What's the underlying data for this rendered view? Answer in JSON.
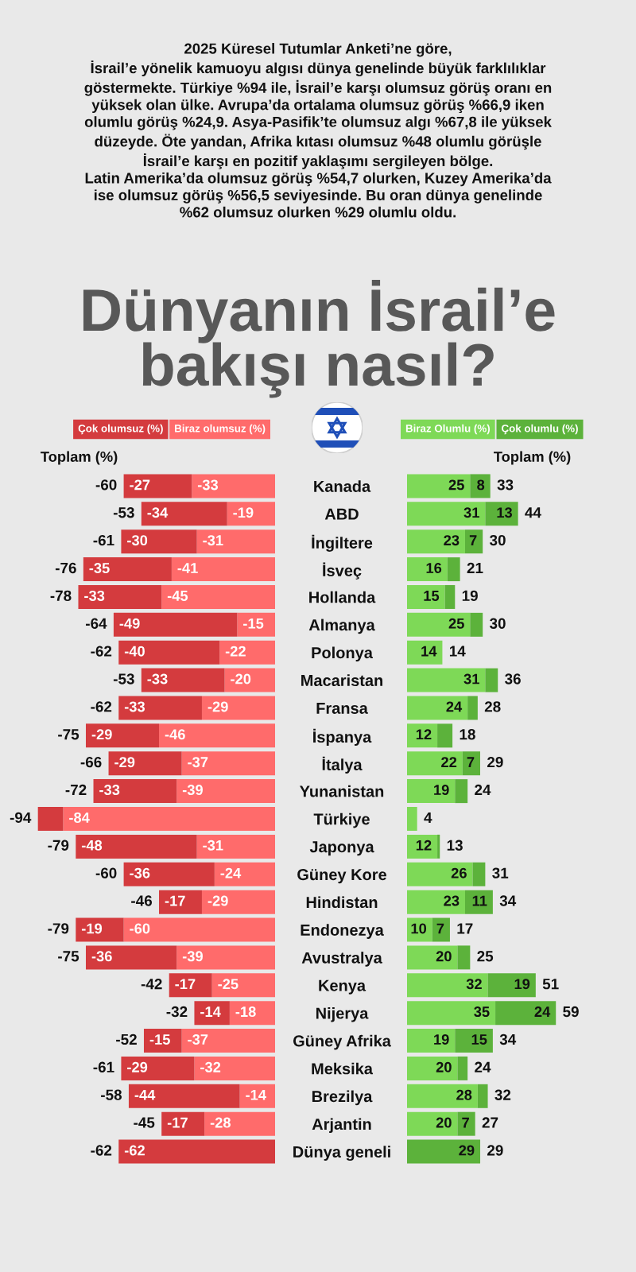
{
  "chart_data": [
    {
      "type": "bar",
      "orientation": "horizontal",
      "stacked": true,
      "title": "Dünyanın İsrail’e\nbakışı nasıl?",
      "subtitle": "2025 Küresel Tutumlar Anketi’ne göre,\nİsrail’e yönelik kamuoyu algısı dünya genelinde büyük farklılıklar\ngöstermekte. Türkiye %94 ile, İsrail’e karşı olumsuz görüş oranı en\nyüksek olan ülke. Avrupa’da ortalama olumsuz görüş %66,9 iken\nolumlu görüş %24,9. Asya-Pasifik’te olumsuz algı %67,8 ile yüksek\ndüzeyde. Öte yandan, Afrika kıtası olumsuz %48 olumlu görüşle\nİsrail’e karşı en pozitif yaklaşımı sergileyen bölge.\nLatin Amerika’da olumsuz görüş %54,7 olurken, Kuzey Amerika’da\nise olumsuz görüş %56,5 seviyesinde. Bu oran dünya genelinde\n%62 olumsuz olurken %29 olumlu oldu.",
      "categories": [
        "Kanada",
        "ABD",
        "İngiltere",
        "İsveç",
        "Hollanda",
        "Almanya",
        "Polonya",
        "Macaristan",
        "Fransa",
        "İspanya",
        "İtalya",
        "Yunanistan",
        "Türkiye",
        "Japonya",
        "Güney Kore",
        "Hindistan",
        "Endonezya",
        "Avustralya",
        "Kenya",
        "Nijerya",
        "Güney Afrika",
        "Meksika",
        "Brezilya",
        "Arjantin",
        "Dünya geneli"
      ],
      "tick_labels": false,
      "legend": "top",
      "annotations": [
        "Toplam (%)"
      ],
      "series": [
        {
          "name": "Biraz olumsuz (%)",
          "color": "#ff6b6b",
          "values": [
            -33,
            -19,
            -31,
            -41,
            -45,
            -15,
            -22,
            -20,
            -29,
            -46,
            -37,
            -39,
            -84,
            -31,
            -24,
            -29,
            -60,
            -39,
            -25,
            -18,
            -37,
            -32,
            -14,
            -28,
            null
          ],
          "value_labels": [
            "-33",
            "-19",
            "-31",
            "-41",
            "-45",
            "-15",
            "-22",
            "-20",
            "-29",
            "-46",
            "-37",
            "-39",
            "-84",
            "-31",
            "-24",
            "-29",
            "-60",
            "-39",
            "-25",
            "-18",
            "-37",
            "-32",
            "-14",
            "-28",
            null
          ]
        },
        {
          "name": "Çok olumsuz (%)",
          "color": "#d43b3e",
          "values": [
            -27,
            -34,
            -30,
            -35,
            -33,
            -49,
            -40,
            -33,
            -33,
            -29,
            -29,
            -33,
            -10,
            -48,
            -36,
            -17,
            -19,
            -36,
            -17,
            -14,
            -15,
            -29,
            -44,
            -17,
            -62
          ],
          "value_labels": [
            "-27",
            "-34",
            "-30",
            "-35",
            "-33",
            "-49",
            "-40",
            "-33",
            "-33",
            "-29",
            "-29",
            "-33",
            null,
            "-48",
            "-36",
            "-17",
            "-19",
            "-36",
            "-17",
            "-14",
            "-15",
            "-29",
            "-44",
            "-17",
            "-62"
          ]
        }
      ],
      "totals": [
        "-60",
        "-53",
        "-61",
        "-76",
        "-78",
        "-64",
        "-62",
        "-53",
        "-62",
        "-75",
        "-66",
        "-72",
        "-94",
        "-79",
        "-60",
        "-46",
        "-79",
        "-75",
        "-42",
        "-32",
        "-52",
        "-61",
        "-58",
        "-45",
        "-62"
      ]
    },
    {
      "type": "bar",
      "orientation": "horizontal",
      "stacked": true,
      "categories": [
        "Kanada",
        "ABD",
        "İngiltere",
        "İsveç",
        "Hollanda",
        "Almanya",
        "Polonya",
        "Macaristan",
        "Fransa",
        "İspanya",
        "İtalya",
        "Yunanistan",
        "Türkiye",
        "Japonya",
        "Güney Kore",
        "Hindistan",
        "Endonezya",
        "Avustralya",
        "Kenya",
        "Nijerya",
        "Güney Afrika",
        "Meksika",
        "Brezilya",
        "Arjantin",
        "Dünya geneli"
      ],
      "tick_labels": "y",
      "legend": "top",
      "annotations": [
        "Toplam (%)"
      ],
      "series": [
        {
          "name": "Biraz Olumlu (%)",
          "color": "#7ed957",
          "values": [
            25,
            31,
            23,
            16,
            15,
            25,
            14,
            31,
            24,
            12,
            22,
            19,
            4,
            12,
            26,
            23,
            10,
            20,
            32,
            35,
            19,
            20,
            28,
            20,
            null
          ],
          "value_labels": [
            "25",
            "31",
            "23",
            "16",
            "15",
            "25",
            "14",
            "31",
            "24",
            "12",
            "22",
            "19",
            null,
            "12",
            "26",
            "23",
            "10",
            "20",
            "32",
            "35",
            "19",
            "20",
            "28",
            "20",
            null
          ]
        },
        {
          "name": "Çok olumlu (%)",
          "color": "#5cb23b",
          "values": [
            8,
            13,
            7,
            5,
            4,
            5,
            null,
            5,
            4,
            6,
            7,
            5,
            null,
            1,
            5,
            11,
            7,
            5,
            19,
            24,
            15,
            4,
            4,
            7,
            29
          ],
          "value_labels": [
            "8",
            "13",
            "7",
            null,
            null,
            null,
            null,
            null,
            null,
            null,
            "7",
            null,
            null,
            null,
            null,
            "11",
            "7",
            null,
            "19",
            "24",
            "15",
            null,
            null,
            "7",
            "29"
          ]
        }
      ],
      "totals": [
        "33",
        "44",
        "30",
        "21",
        "19",
        "30",
        "14",
        "36",
        "28",
        "18",
        "29",
        "24",
        "4",
        "13",
        "31",
        "34",
        "17",
        "25",
        "51",
        "59",
        "34",
        "24",
        "32",
        "27",
        "29"
      ]
    }
  ]
}
